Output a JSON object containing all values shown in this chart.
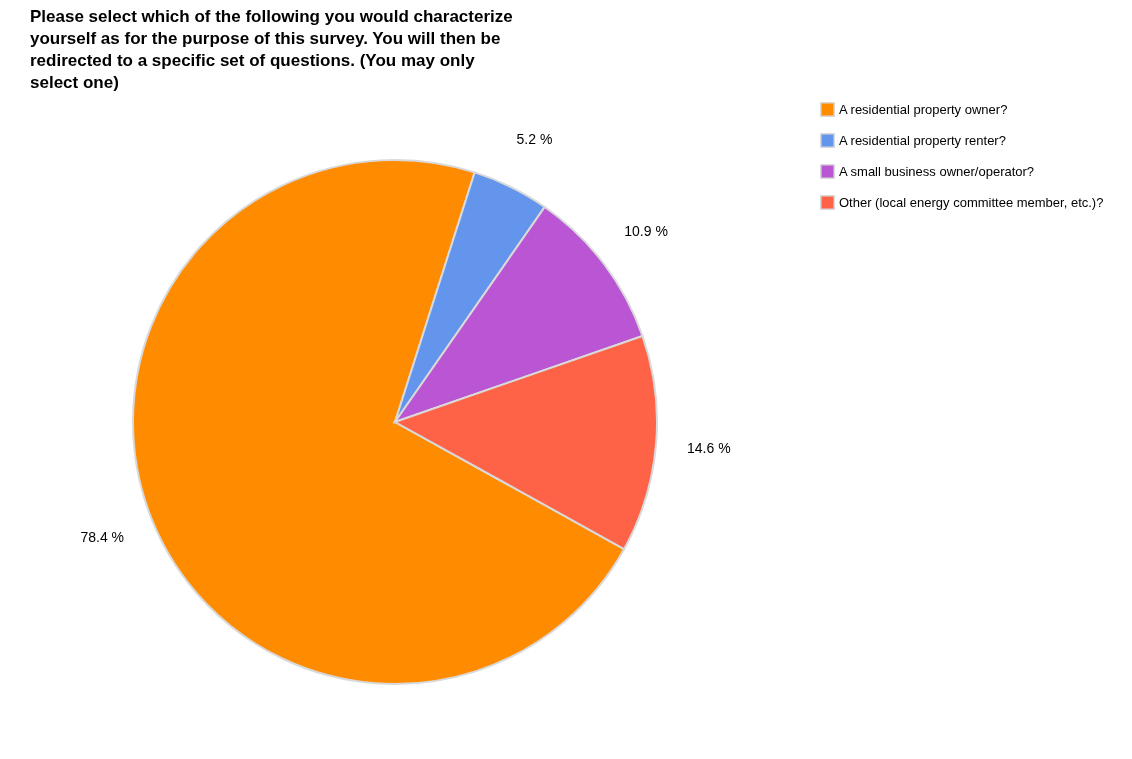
{
  "chart_data": {
    "type": "pie",
    "title": "Please select which of the following you would characterize yourself as for the purpose of this survey. You will then be redirected to a specific set of questions. (You may only select one)",
    "categories": [
      "A residential property owner?",
      "A residential property renter?",
      "A small business owner/operator?",
      "Other (local energy committee member, etc.)?"
    ],
    "values": [
      78.4,
      5.2,
      10.9,
      14.6
    ],
    "value_labels": [
      "78.4 %",
      "5.2 %",
      "10.9 %",
      "14.6 %"
    ],
    "colors": [
      "#ff8c00",
      "#6495ed",
      "#ba55d3",
      "#ff6347"
    ],
    "legend": "right"
  }
}
